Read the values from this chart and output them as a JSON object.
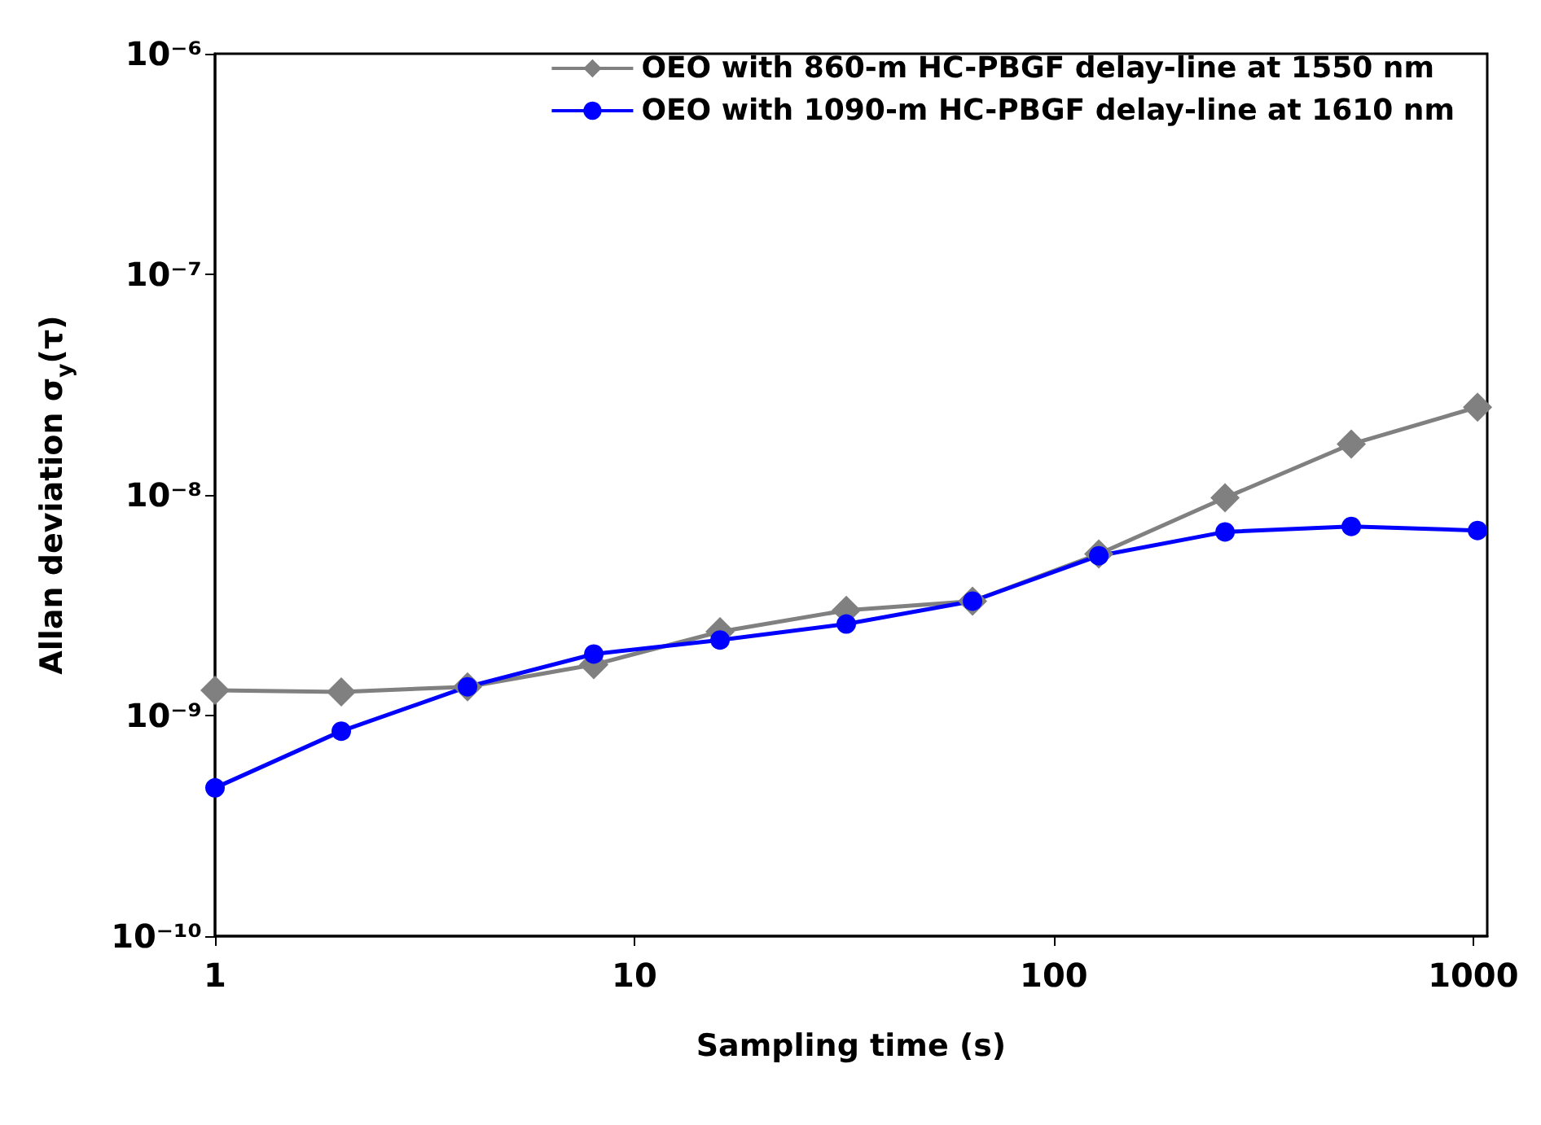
{
  "chart_data": {
    "type": "line",
    "xlabel": "Sampling time (s)",
    "ylabel": "Allan deviation σ$_{y}$(τ)",
    "log": "xy",
    "x": [
      1,
      2,
      4,
      8,
      16,
      32,
      64,
      128,
      256,
      512,
      1024
    ],
    "series": [
      {
        "name": "OEO with 860-m HC-PBGF delay-line at 1550 nm",
        "color": "#808080",
        "marker": "diamond",
        "values": [
          1.3e-09,
          1.28e-09,
          1.35e-09,
          1.7e-09,
          2.4e-09,
          3e-09,
          3.3e-09,
          5.4e-09,
          9.7e-09,
          1.7e-08,
          2.5e-08
        ]
      },
      {
        "name": "OEO with 1090-m HC-PBGF delay-line at 1610 nm",
        "color": "#0000ff",
        "marker": "circle",
        "values": [
          4.7e-10,
          8.5e-10,
          1.35e-09,
          1.9e-09,
          2.2e-09,
          2.6e-09,
          3.3e-09,
          5.3e-09,
          6.8e-09,
          7.2e-09,
          6.9e-09
        ]
      }
    ],
    "xlim": [
      1,
      1080
    ],
    "xticks": [
      1,
      10,
      100,
      1000
    ],
    "ylim": [
      1e-10,
      1e-06
    ],
    "yticks": [
      {
        "value": 1e-10,
        "label": "10⁻¹⁰"
      },
      {
        "value": 1e-09,
        "label": "10⁻⁹"
      },
      {
        "value": 1e-08,
        "label": "10⁻⁸"
      },
      {
        "value": 1e-07,
        "label": "10⁻⁷"
      },
      {
        "value": 1e-06,
        "label": "10⁻⁶"
      }
    ],
    "grid": false,
    "legend": "top right",
    "line_style": "solid"
  }
}
